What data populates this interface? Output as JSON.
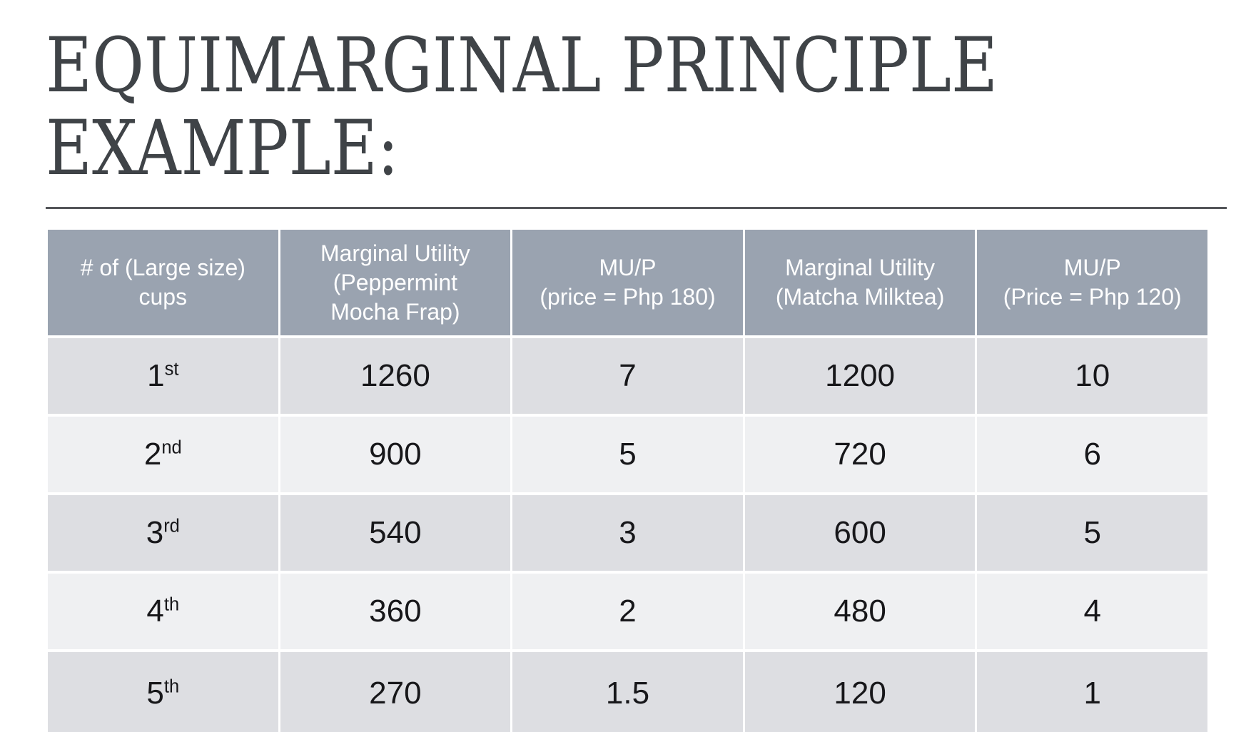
{
  "slide": {
    "title_lines": [
      "EQUIMARGINAL PRINCIPLE",
      "EXAMPLE:"
    ]
  },
  "table": {
    "headers": [
      {
        "lines": [
          "# of (Large size)",
          "cups"
        ]
      },
      {
        "lines": [
          "Marginal Utility",
          "(Peppermint",
          "Mocha Frap)"
        ]
      },
      {
        "lines": [
          "MU/P",
          "(price = Php 180)"
        ]
      },
      {
        "lines": [
          "Marginal Utility",
          "(Matcha Milktea)"
        ]
      },
      {
        "lines": [
          "MU/P",
          "(Price = Php 120)"
        ]
      }
    ],
    "rows": [
      {
        "ordinal": "1",
        "suffix": "st",
        "mu_frap": "1260",
        "mu_per_p_frap": "7",
        "mu_matcha": "1200",
        "mu_per_p_matcha": "10"
      },
      {
        "ordinal": "2",
        "suffix": "nd",
        "mu_frap": "900",
        "mu_per_p_frap": "5",
        "mu_matcha": "720",
        "mu_per_p_matcha": "6"
      },
      {
        "ordinal": "3",
        "suffix": "rd",
        "mu_frap": "540",
        "mu_per_p_frap": "3",
        "mu_matcha": "600",
        "mu_per_p_matcha": "5"
      },
      {
        "ordinal": "4",
        "suffix": "th",
        "mu_frap": "360",
        "mu_per_p_frap": "2",
        "mu_matcha": "480",
        "mu_per_p_matcha": "4"
      },
      {
        "ordinal": "5",
        "suffix": "th",
        "mu_frap": "270",
        "mu_per_p_frap": "1.5",
        "mu_matcha": "120",
        "mu_per_p_matcha": "1"
      }
    ]
  },
  "colors": {
    "header_bg": "#9AA3B0",
    "row_dark": "#DDDEE2",
    "row_light": "#EFF0F2",
    "header_text": "#FFFFFF",
    "body_text": "#17171A",
    "title_text": "#3F4347",
    "divider": "#54565A",
    "page_bg": "#FFFFFF"
  }
}
